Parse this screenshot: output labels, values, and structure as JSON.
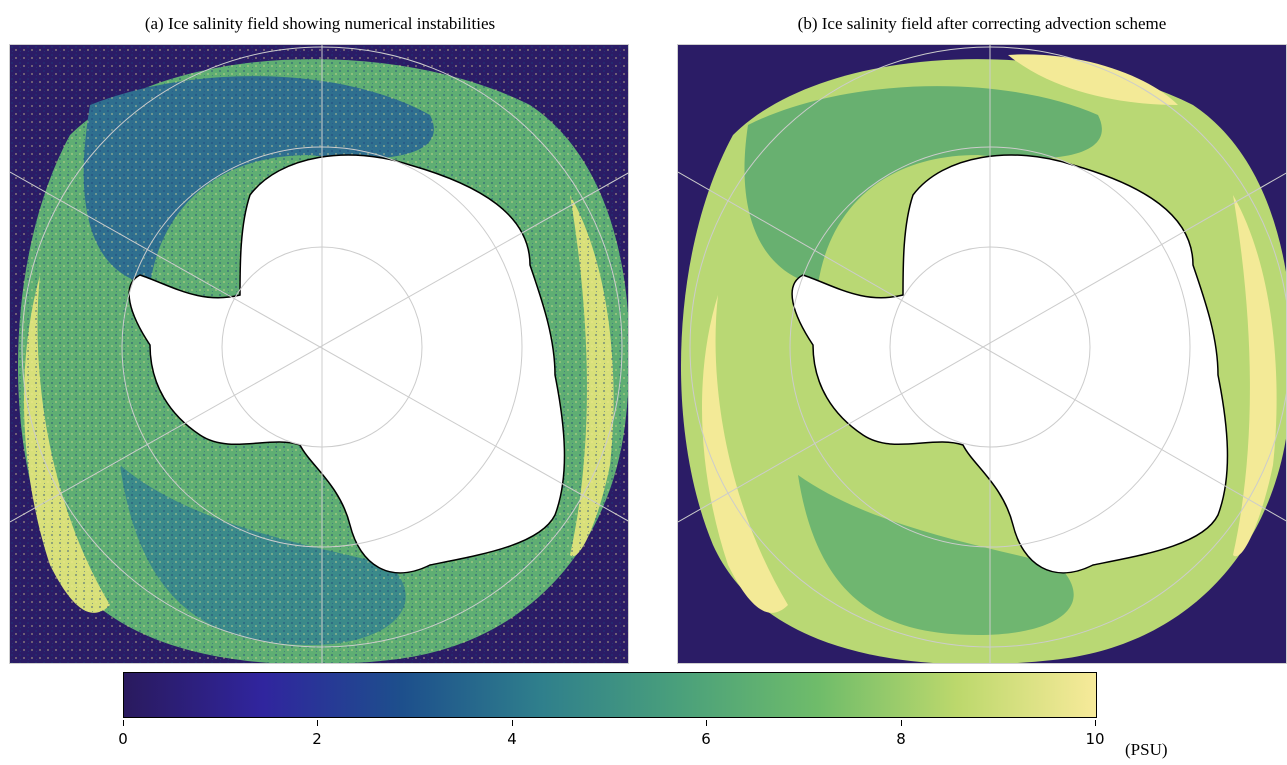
{
  "panels": {
    "a": {
      "title": "(a) Ice salinity field showing numerical instabilities"
    },
    "b": {
      "title": "(b) Ice salinity field after correcting advection scheme"
    }
  },
  "colorbar": {
    "ticks": [
      "0",
      "2",
      "4",
      "6",
      "8",
      "10"
    ],
    "units": "(PSU)",
    "min": 0,
    "max": 10,
    "colormap_stops": [
      "#2a1a5e",
      "#30259e",
      "#1d4f8c",
      "#2f7f8c",
      "#4aa07b",
      "#6fbc6a",
      "#bcd86c",
      "#f7ea9a"
    ]
  },
  "colors": {
    "ocean": "#2b1c66",
    "land": "#ffffff",
    "coast": "#000000",
    "grid": "#cccccc"
  }
}
